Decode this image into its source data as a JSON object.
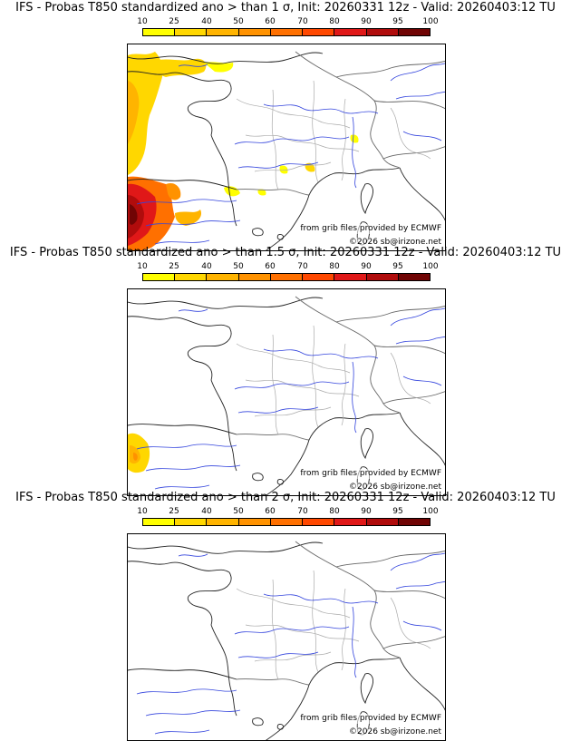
{
  "colorbar": {
    "ticks": [
      "10",
      "25",
      "40",
      "50",
      "60",
      "70",
      "80",
      "90",
      "95",
      "100"
    ],
    "colors": [
      "#ffff00",
      "#ffd700",
      "#ffb400",
      "#ff9200",
      "#ff7000",
      "#ff4800",
      "#e01818",
      "#b00c0c",
      "#700404"
    ]
  },
  "panels": [
    {
      "title": "IFS - Probas T850  standardized ano > than 1 σ, Init: 20260331 12z - Valid: 20260403:12 TU",
      "credit_source": "from grib files provided by ECMWF",
      "credit_copyright": "©2026 sb@irizone.net"
    },
    {
      "title": "IFS - Probas T850  standardized ano > than 1.5 σ, Init: 20260331 12z - Valid: 20260403:12 TU",
      "credit_source": "from grib files provided by ECMWF",
      "credit_copyright": "©2026 sb@irizone.net"
    },
    {
      "title": "IFS - Probas T850  standardized ano > than 2 σ, Init: 20260331 12z - Valid: 20260403:12 TU",
      "credit_source": "from grib files provided by ECMWF",
      "credit_copyright": "©2026 sb@irizone.net"
    }
  ],
  "palette": {
    "coast": "#222222",
    "rivers": "#3344dd",
    "borders": "#999999"
  }
}
